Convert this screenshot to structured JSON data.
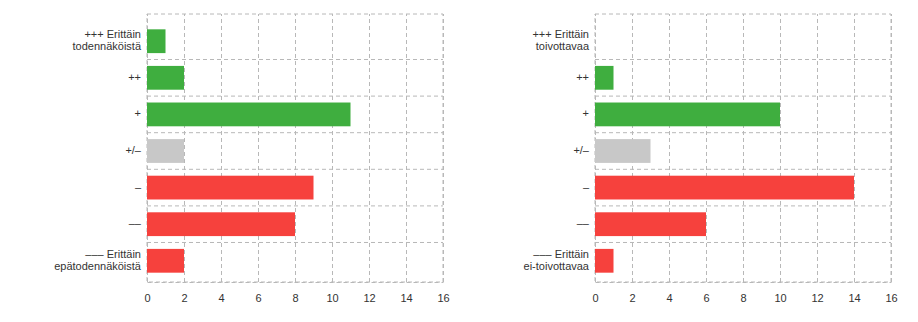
{
  "chart_data": [
    {
      "type": "bar",
      "orientation": "horizontal",
      "categories": [
        "+++ Erittäin\ntodennäköistä",
        "++",
        "+",
        "+/–",
        "–",
        "––",
        "––– Erittäin\nepätodennäköistä"
      ],
      "values": [
        1,
        2,
        11,
        2,
        9,
        8,
        2
      ],
      "colors": [
        "#3fae3f",
        "#3fae3f",
        "#3fae3f",
        "#c8c8c8",
        "#f6413d",
        "#f6413d",
        "#f6413d"
      ],
      "xlim": [
        0,
        16
      ],
      "xticks": [
        0,
        2,
        4,
        6,
        8,
        10,
        12,
        14,
        16
      ],
      "grid": true
    },
    {
      "type": "bar",
      "orientation": "horizontal",
      "categories": [
        "+++ Erittäin\ntoivottavaa",
        "++",
        "+",
        "+/–",
        "–",
        "––",
        "––– Erittäin\nei-toivottavaa"
      ],
      "values": [
        0,
        1,
        10,
        3,
        14,
        6,
        1
      ],
      "colors": [
        "#3fae3f",
        "#3fae3f",
        "#3fae3f",
        "#c8c8c8",
        "#f6413d",
        "#f6413d",
        "#f6413d"
      ],
      "xlim": [
        0,
        16
      ],
      "xticks": [
        0,
        2,
        4,
        6,
        8,
        10,
        12,
        14,
        16
      ],
      "grid": true
    }
  ]
}
